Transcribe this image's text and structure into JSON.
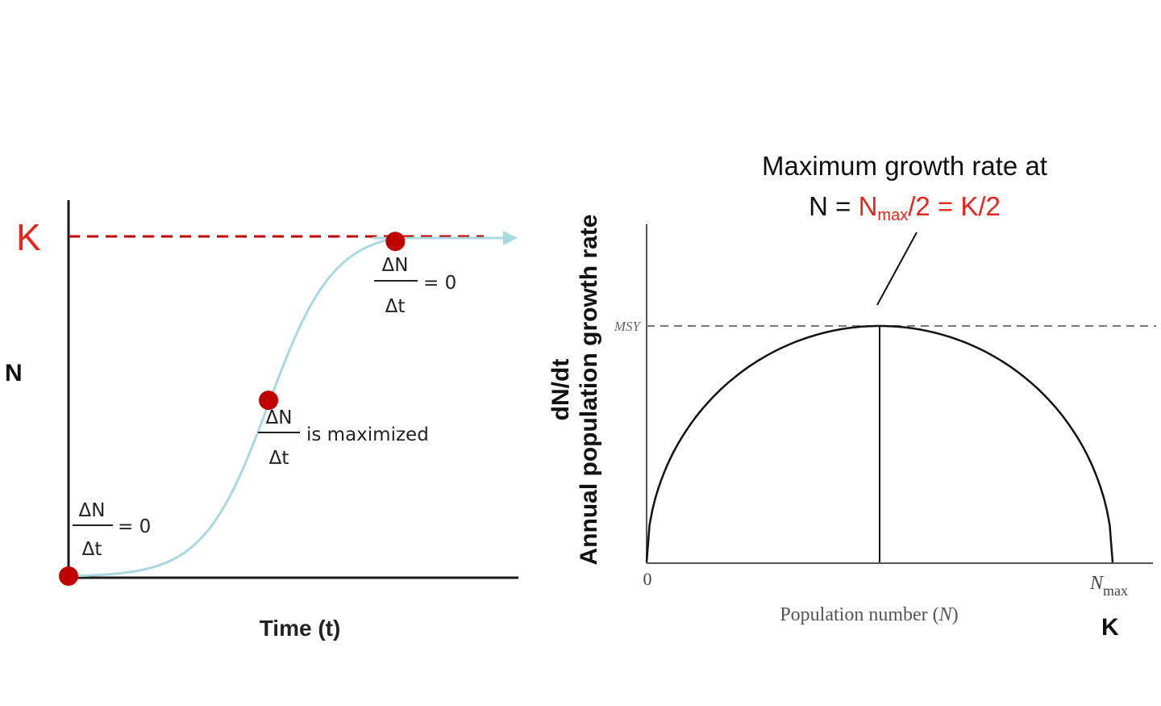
{
  "colors": {
    "red": "#c00000",
    "k_red": "#e8241c",
    "curve": "#a8d8e0",
    "axis": "#1a1a1a",
    "grey": "#777777"
  },
  "chart_data": [
    {
      "type": "line",
      "name": "logistic-growth",
      "xlabel": "Time (t)",
      "ylabel": "N",
      "k_label": "K",
      "ylim": [
        0,
        1
      ],
      "points": [
        {
          "id": "start",
          "t": 0.0,
          "n": 0.0
        },
        {
          "id": "inflection",
          "t": 0.41,
          "n": 0.52
        },
        {
          "id": "plateau",
          "t": 0.67,
          "n": 0.99
        }
      ],
      "annotations": {
        "start": {
          "numerator": "ΔN",
          "denominator": "Δt",
          "suffix": "= 0"
        },
        "inflection": {
          "numerator": "ΔN",
          "denominator": "Δt",
          "suffix": "is maximized"
        },
        "plateau": {
          "numerator": "ΔN",
          "denominator": "Δt",
          "suffix": "= 0"
        }
      }
    },
    {
      "type": "line",
      "name": "growth-rate-vs-population",
      "title_line1": "Maximum growth rate at",
      "title_line2": {
        "prefix": "N = ",
        "n": "N",
        "sub": "max",
        "rest": "/2 = K/2"
      },
      "xlabel": {
        "text": "Population number (",
        "var": "N",
        "close": ")"
      },
      "ylabel_line1": "dN/dt",
      "ylabel_line2": "Annual population growth rate",
      "msy_label": "MSY",
      "origin_label": "0",
      "nmax_label": {
        "main": "N",
        "sub": "max"
      },
      "k_label": "K",
      "xlim": [
        0,
        1
      ],
      "ylim": [
        0,
        1
      ],
      "peak": {
        "x": 0.5,
        "y": 1.0
      }
    }
  ]
}
